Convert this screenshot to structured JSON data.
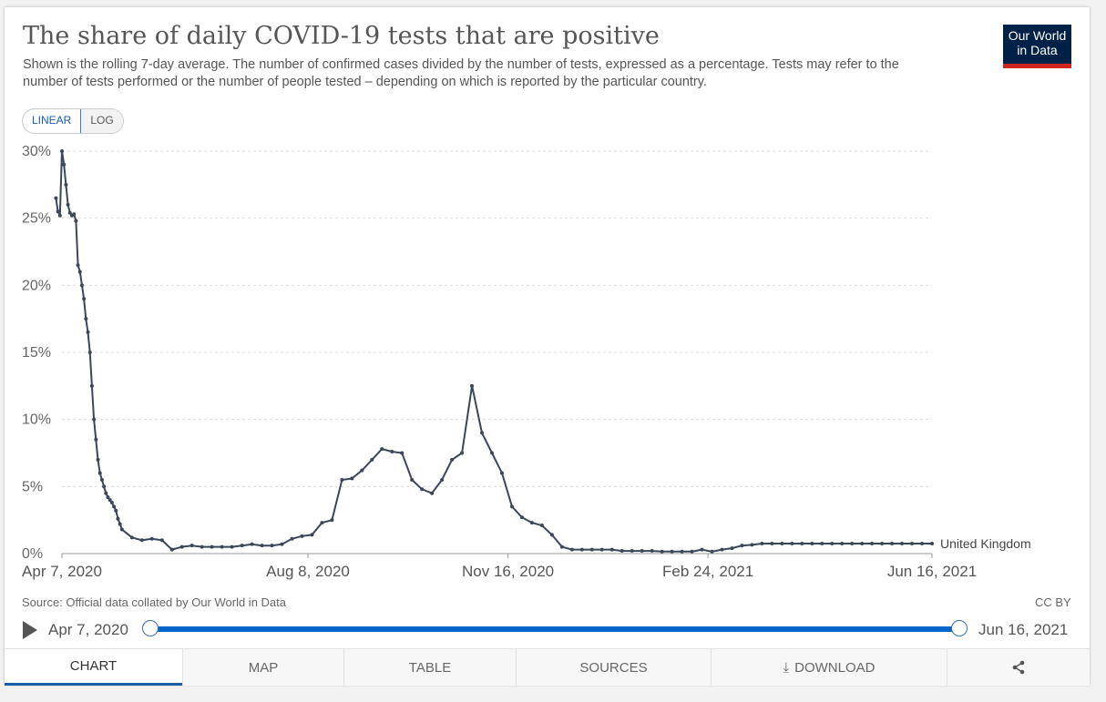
{
  "header": {
    "title": "The share of daily COVID-19 tests that are positive",
    "subtitle": "Shown is the rolling 7-day average. The number of confirmed cases divided by the number of tests, expressed as a percentage. Tests may refer to the number of tests performed or the number of people tested – depending on which is reported by the particular country.",
    "logo_line1": "Our World",
    "logo_line2": "in Data"
  },
  "controls": {
    "linear_label": "LINEAR",
    "log_label": "LOG"
  },
  "footer": {
    "source": "Source: Official data collated by Our World in Data",
    "license": "CC BY"
  },
  "timeline": {
    "start_label": "Apr 7, 2020",
    "end_label": "Jun 16, 2021"
  },
  "tabs": {
    "chart": "CHART",
    "map": "MAP",
    "table": "TABLE",
    "sources": "SOURCES",
    "download": "DOWNLOAD"
  },
  "colors": {
    "line": "#3b4658",
    "grid": "#dddddd",
    "accent": "#0066cc",
    "brand": "#002147",
    "brand_red": "#ce261e"
  },
  "chart_data": {
    "type": "line",
    "title": "The share of daily COVID-19 tests that are positive",
    "xlabel": "",
    "ylabel": "",
    "ylim": [
      0,
      30
    ],
    "y_ticks": [
      0,
      5,
      10,
      15,
      20,
      25,
      30
    ],
    "y_tick_labels": [
      "0%",
      "5%",
      "10%",
      "15%",
      "20%",
      "25%",
      "30%"
    ],
    "x_ticks": [
      0,
      123,
      223,
      323,
      435
    ],
    "x_tick_labels": [
      "Apr 7, 2020",
      "Aug 8, 2020",
      "Nov 16, 2020",
      "Feb 24, 2021",
      "Jun 16, 2021"
    ],
    "xlim": [
      0,
      435
    ],
    "grid": true,
    "series": [
      {
        "name": "United Kingdom",
        "x": [
          -3,
          -2,
          -1,
          0,
          1,
          2,
          3,
          4,
          5,
          6,
          7,
          8,
          9,
          10,
          11,
          12,
          13,
          14,
          15,
          16,
          17,
          18,
          19,
          20,
          21,
          22,
          23,
          24,
          25,
          26,
          27,
          28,
          29,
          30,
          35,
          40,
          45,
          50,
          55,
          60,
          65,
          70,
          75,
          80,
          85,
          90,
          95,
          100,
          105,
          110,
          115,
          120,
          125,
          130,
          135,
          140,
          145,
          150,
          155,
          160,
          165,
          170,
          175,
          180,
          185,
          190,
          195,
          200,
          205,
          210,
          215,
          220,
          225,
          230,
          235,
          240,
          245,
          250,
          255,
          260,
          265,
          270,
          275,
          280,
          285,
          290,
          295,
          300,
          305,
          310,
          315,
          320,
          325,
          330,
          335,
          340,
          345,
          350,
          355,
          360,
          365,
          370,
          375,
          380,
          385,
          390,
          395,
          400,
          405,
          410,
          415,
          420,
          425,
          430,
          435
        ],
        "values": [
          26.5,
          25.5,
          25.2,
          30,
          29,
          27.5,
          26,
          25.4,
          25.2,
          25.3,
          24.8,
          21.5,
          21,
          20,
          19,
          17.5,
          16.5,
          15,
          12.5,
          10,
          8.5,
          7,
          6,
          5.5,
          5,
          4.5,
          4.2,
          4,
          3.8,
          3.5,
          3.2,
          2.6,
          2.2,
          1.8,
          1.2,
          1,
          1.1,
          1,
          0.3,
          0.5,
          0.6,
          0.5,
          0.5,
          0.5,
          0.5,
          0.6,
          0.7,
          0.6,
          0.6,
          0.7,
          1.1,
          1.3,
          1.4,
          2.3,
          2.5,
          5.5,
          5.6,
          6.2,
          7,
          7.8,
          7.6,
          7.5,
          5.5,
          4.8,
          4.5,
          5.5,
          7,
          7.5,
          12.5,
          9,
          7.5,
          6,
          3.5,
          2.7,
          2.3,
          2.1,
          1.4,
          0.5,
          0.3,
          0.3,
          0.3,
          0.3,
          0.3,
          0.2,
          0.2,
          0.2,
          0.2,
          0.15,
          0.15,
          0.15,
          0.15,
          0.3,
          0.15,
          0.3,
          0.4,
          0.6,
          0.65,
          0.75,
          0.75,
          0.75,
          0.75,
          0.75,
          0.75,
          0.75,
          0.75,
          0.75,
          0.75,
          0.75,
          0.75,
          0.75,
          0.75,
          0.75,
          0.75,
          0.75,
          0.75
        ]
      }
    ]
  }
}
